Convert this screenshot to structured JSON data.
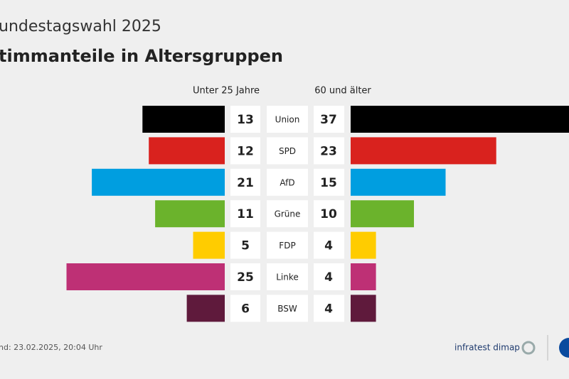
{
  "chart_data": {
    "type": "butterfly",
    "supertitle": "undestagswahl 2025",
    "title": "timmanteile in Altersgruppen",
    "categories": [
      "Union",
      "SPD",
      "AfD",
      "Grüne",
      "FDP",
      "Linke",
      "BSW"
    ],
    "colors": [
      "#000000",
      "#d9221e",
      "#009ee0",
      "#6bb32c",
      "#ffcc00",
      "#be3075",
      "#5f1a3c"
    ],
    "series": [
      {
        "name": "Unter 25 Jahre",
        "values": [
          13,
          12,
          21,
          11,
          5,
          25,
          6
        ]
      },
      {
        "name": "60 und älter",
        "values": [
          37,
          23,
          15,
          10,
          4,
          4,
          4
        ]
      }
    ],
    "footnote": "nd:  23.02.2025, 20:04 Uhr",
    "source": "infratest dimap"
  }
}
